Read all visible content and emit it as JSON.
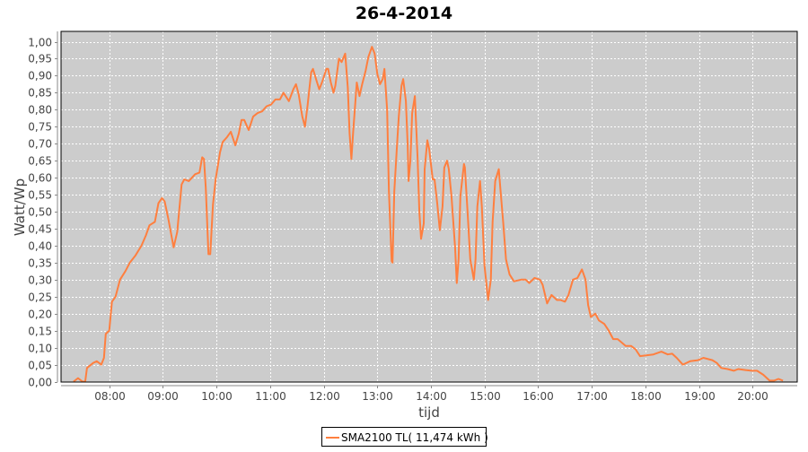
{
  "chart_data": {
    "type": "line",
    "title": "26-4-2014",
    "xlabel": "tijd",
    "ylabel": "Watt/Wp",
    "xlim": [
      "07:06",
      "20:50"
    ],
    "ylim": [
      0,
      1.0
    ],
    "grid": true,
    "legend_position": "bottom",
    "background_color": "#cccccc",
    "x_ticks": [
      "08:00",
      "09:00",
      "10:00",
      "11:00",
      "12:00",
      "13:00",
      "14:00",
      "15:00",
      "16:00",
      "17:00",
      "18:00",
      "19:00",
      "20:00"
    ],
    "y_ticks": [
      "0,00",
      "0,05",
      "0,10",
      "0,15",
      "0,20",
      "0,25",
      "0,30",
      "0,35",
      "0,40",
      "0,45",
      "0,50",
      "0,55",
      "0,60",
      "0,65",
      "0,70",
      "0,75",
      "0,80",
      "0,85",
      "0,90",
      "0,95",
      "1,00"
    ],
    "series": [
      {
        "name": "SMA2100 TL( 11,474 kWh )",
        "color": "#ff7f3f",
        "points": [
          [
            "07:20",
            0.0
          ],
          [
            "07:25",
            0.01
          ],
          [
            "07:30",
            0.0
          ],
          [
            "07:33",
            0.0
          ],
          [
            "07:35",
            0.04
          ],
          [
            "07:42",
            0.055
          ],
          [
            "07:46",
            0.06
          ],
          [
            "07:51",
            0.05
          ],
          [
            "07:54",
            0.07
          ],
          [
            "07:56",
            0.14
          ],
          [
            "08:00",
            0.15
          ],
          [
            "08:03",
            0.235
          ],
          [
            "08:07",
            0.25
          ],
          [
            "08:12",
            0.3
          ],
          [
            "08:18",
            0.325
          ],
          [
            "08:23",
            0.35
          ],
          [
            "08:29",
            0.37
          ],
          [
            "08:36",
            0.4
          ],
          [
            "08:41",
            0.43
          ],
          [
            "08:45",
            0.46
          ],
          [
            "08:51",
            0.47
          ],
          [
            "08:55",
            0.525
          ],
          [
            "08:59",
            0.54
          ],
          [
            "09:02",
            0.53
          ],
          [
            "09:06",
            0.48
          ],
          [
            "09:12",
            0.395
          ],
          [
            "09:16",
            0.44
          ],
          [
            "09:21",
            0.58
          ],
          [
            "09:24",
            0.595
          ],
          [
            "09:29",
            0.59
          ],
          [
            "09:36",
            0.61
          ],
          [
            "09:41",
            0.615
          ],
          [
            "09:44",
            0.66
          ],
          [
            "09:46",
            0.655
          ],
          [
            "09:48",
            0.57
          ],
          [
            "09:51",
            0.375
          ],
          [
            "09:53",
            0.375
          ],
          [
            "09:56",
            0.52
          ],
          [
            "09:59",
            0.595
          ],
          [
            "10:04",
            0.675
          ],
          [
            "10:07",
            0.705
          ],
          [
            "10:12",
            0.72
          ],
          [
            "10:16",
            0.735
          ],
          [
            "10:21",
            0.695
          ],
          [
            "10:25",
            0.73
          ],
          [
            "10:28",
            0.77
          ],
          [
            "10:31",
            0.77
          ],
          [
            "10:36",
            0.74
          ],
          [
            "10:41",
            0.78
          ],
          [
            "10:46",
            0.79
          ],
          [
            "10:51",
            0.795
          ],
          [
            "10:56",
            0.81
          ],
          [
            "11:01",
            0.815
          ],
          [
            "11:06",
            0.83
          ],
          [
            "11:11",
            0.83
          ],
          [
            "11:15",
            0.85
          ],
          [
            "11:21",
            0.825
          ],
          [
            "11:26",
            0.86
          ],
          [
            "11:29",
            0.875
          ],
          [
            "11:32",
            0.845
          ],
          [
            "11:36",
            0.78
          ],
          [
            "11:39",
            0.75
          ],
          [
            "11:42",
            0.815
          ],
          [
            "11:46",
            0.91
          ],
          [
            "11:48",
            0.92
          ],
          [
            "11:52",
            0.885
          ],
          [
            "11:55",
            0.86
          ],
          [
            "11:58",
            0.88
          ],
          [
            "12:03",
            0.92
          ],
          [
            "12:05",
            0.92
          ],
          [
            "12:08",
            0.88
          ],
          [
            "12:11",
            0.85
          ],
          [
            "12:13",
            0.87
          ],
          [
            "12:17",
            0.95
          ],
          [
            "12:20",
            0.94
          ],
          [
            "12:24",
            0.965
          ],
          [
            "12:27",
            0.865
          ],
          [
            "12:29",
            0.73
          ],
          [
            "12:31",
            0.655
          ],
          [
            "12:33",
            0.735
          ],
          [
            "12:37",
            0.88
          ],
          [
            "12:40",
            0.84
          ],
          [
            "12:43",
            0.875
          ],
          [
            "12:47",
            0.915
          ],
          [
            "12:50",
            0.955
          ],
          [
            "12:54",
            0.985
          ],
          [
            "12:57",
            0.965
          ],
          [
            "13:00",
            0.905
          ],
          [
            "13:03",
            0.875
          ],
          [
            "13:06",
            0.89
          ],
          [
            "13:08",
            0.92
          ],
          [
            "13:11",
            0.8
          ],
          [
            "13:13",
            0.56
          ],
          [
            "13:16",
            0.355
          ],
          [
            "13:17",
            0.35
          ],
          [
            "13:19",
            0.56
          ],
          [
            "13:22",
            0.695
          ],
          [
            "13:24",
            0.78
          ],
          [
            "13:27",
            0.87
          ],
          [
            "13:29",
            0.89
          ],
          [
            "13:32",
            0.825
          ],
          [
            "13:34",
            0.695
          ],
          [
            "13:35",
            0.59
          ],
          [
            "13:37",
            0.65
          ],
          [
            "13:39",
            0.79
          ],
          [
            "13:42",
            0.84
          ],
          [
            "13:43",
            0.78
          ],
          [
            "13:45",
            0.66
          ],
          [
            "13:47",
            0.5
          ],
          [
            "13:49",
            0.42
          ],
          [
            "13:52",
            0.465
          ],
          [
            "13:53",
            0.625
          ],
          [
            "13:56",
            0.71
          ],
          [
            "13:58",
            0.685
          ],
          [
            "14:02",
            0.595
          ],
          [
            "14:04",
            0.595
          ],
          [
            "14:07",
            0.525
          ],
          [
            "14:10",
            0.445
          ],
          [
            "14:13",
            0.515
          ],
          [
            "14:15",
            0.63
          ],
          [
            "14:18",
            0.65
          ],
          [
            "14:20",
            0.625
          ],
          [
            "14:23",
            0.545
          ],
          [
            "14:27",
            0.395
          ],
          [
            "14:29",
            0.29
          ],
          [
            "14:31",
            0.36
          ],
          [
            "14:33",
            0.545
          ],
          [
            "14:37",
            0.64
          ],
          [
            "14:38",
            0.63
          ],
          [
            "14:41",
            0.5
          ],
          [
            "14:44",
            0.36
          ],
          [
            "14:48",
            0.3
          ],
          [
            "14:50",
            0.36
          ],
          [
            "14:52",
            0.515
          ],
          [
            "14:55",
            0.59
          ],
          [
            "14:57",
            0.515
          ],
          [
            "15:00",
            0.34
          ],
          [
            "15:04",
            0.24
          ],
          [
            "15:07",
            0.3
          ],
          [
            "15:09",
            0.47
          ],
          [
            "15:12",
            0.59
          ],
          [
            "15:16",
            0.625
          ],
          [
            "15:18",
            0.56
          ],
          [
            "15:21",
            0.465
          ],
          [
            "15:24",
            0.36
          ],
          [
            "15:28",
            0.315
          ],
          [
            "15:33",
            0.295
          ],
          [
            "15:41",
            0.3
          ],
          [
            "15:46",
            0.3
          ],
          [
            "15:50",
            0.29
          ],
          [
            "15:56",
            0.305
          ],
          [
            "16:02",
            0.3
          ],
          [
            "16:05",
            0.285
          ],
          [
            "16:10",
            0.23
          ],
          [
            "16:15",
            0.255
          ],
          [
            "16:21",
            0.24
          ],
          [
            "16:25",
            0.24
          ],
          [
            "16:30",
            0.235
          ],
          [
            "16:34",
            0.255
          ],
          [
            "16:39",
            0.3
          ],
          [
            "16:44",
            0.305
          ],
          [
            "16:49",
            0.33
          ],
          [
            "16:53",
            0.3
          ],
          [
            "16:56",
            0.225
          ],
          [
            "16:59",
            0.19
          ],
          [
            "17:04",
            0.2
          ],
          [
            "17:08",
            0.18
          ],
          [
            "17:14",
            0.17
          ],
          [
            "17:19",
            0.15
          ],
          [
            "17:24",
            0.125
          ],
          [
            "17:29",
            0.125
          ],
          [
            "17:38",
            0.105
          ],
          [
            "17:44",
            0.105
          ],
          [
            "17:49",
            0.095
          ],
          [
            "17:54",
            0.075
          ],
          [
            "18:01",
            0.077
          ],
          [
            "18:09",
            0.08
          ],
          [
            "18:18",
            0.088
          ],
          [
            "18:25",
            0.08
          ],
          [
            "18:30",
            0.082
          ],
          [
            "18:35",
            0.07
          ],
          [
            "18:42",
            0.05
          ],
          [
            "18:50",
            0.06
          ],
          [
            "18:59",
            0.063
          ],
          [
            "19:05",
            0.07
          ],
          [
            "19:15",
            0.063
          ],
          [
            "19:20",
            0.055
          ],
          [
            "19:25",
            0.04
          ],
          [
            "19:32",
            0.037
          ],
          [
            "19:39",
            0.032
          ],
          [
            "19:44",
            0.037
          ],
          [
            "19:52",
            0.034
          ],
          [
            "19:59",
            0.032
          ],
          [
            "20:05",
            0.032
          ],
          [
            "20:12",
            0.02
          ],
          [
            "20:19",
            0.003
          ],
          [
            "20:24",
            0.003
          ],
          [
            "20:29",
            0.008
          ],
          [
            "20:34",
            0.003
          ]
        ]
      }
    ]
  }
}
